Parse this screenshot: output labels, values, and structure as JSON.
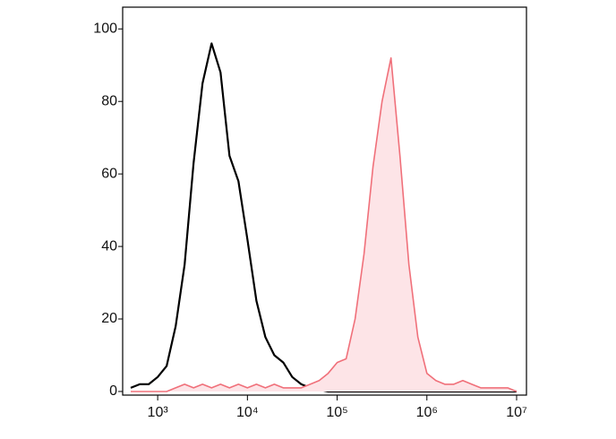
{
  "chart_data": {
    "type": "line",
    "log_x": true,
    "x": [
      501,
      631,
      794,
      1000,
      1259,
      1585,
      1995,
      2512,
      3162,
      3981,
      5012,
      6310,
      7943,
      10000,
      12589,
      15849,
      19953,
      25119,
      31623,
      39811,
      50119,
      63096,
      79433,
      100000,
      125893,
      158489,
      199526,
      251189,
      316228,
      398107,
      501187,
      630957,
      794328,
      1000000,
      1258925,
      1584893,
      1995262,
      2511886,
      3162278,
      3981072,
      5011872,
      6309573,
      7943282,
      10000000
    ],
    "series": [
      {
        "color": "#000000",
        "fill": false,
        "values": [
          1,
          2,
          2,
          4,
          7,
          18,
          35,
          63,
          85,
          96,
          88,
          65,
          58,
          42,
          25,
          15,
          10,
          8,
          4,
          2,
          1,
          0.5,
          0,
          0,
          0,
          0,
          0,
          0,
          0,
          0,
          0,
          0,
          0,
          0,
          0,
          0,
          0,
          0,
          0,
          0,
          0,
          0,
          0,
          0
        ]
      },
      {
        "color": "#f0707a",
        "fill": true,
        "fill_color": "#fde4e7",
        "values": [
          0,
          0,
          0,
          0,
          0,
          1,
          2,
          1,
          2,
          1,
          2,
          1,
          2,
          1,
          2,
          1,
          2,
          1,
          1,
          1,
          2,
          3,
          5,
          8,
          9,
          20,
          38,
          62,
          80,
          92,
          65,
          35,
          15,
          5,
          3,
          2,
          2,
          3,
          2,
          1,
          1,
          1,
          1,
          0
        ]
      }
    ],
    "xlim": [
      407,
      12880000
    ],
    "xticks": [
      {
        "value": 1000,
        "label": "10³"
      },
      {
        "value": 10000,
        "label": "10⁴"
      },
      {
        "value": 100000,
        "label": "10⁵"
      },
      {
        "value": 1000000,
        "label": "10⁶"
      },
      {
        "value": 10000000,
        "label": "10⁷"
      }
    ],
    "ylim": [
      -1,
      106
    ],
    "yticks": [
      0,
      20,
      40,
      60,
      80,
      100
    ],
    "grid": false
  }
}
